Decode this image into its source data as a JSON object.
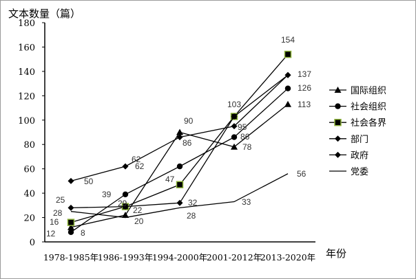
{
  "chart_data": {
    "type": "line",
    "ylabel": "文本数量（篇）",
    "xlabel": "年份",
    "ylim": [
      0,
      180
    ],
    "yticks": [
      0,
      20,
      40,
      60,
      80,
      100,
      120,
      140,
      160,
      180
    ],
    "categories": [
      "1978-1985年",
      "1986-1993年",
      "1994-2000年",
      "2001-2012年",
      "2013-2020年"
    ],
    "grid": false,
    "legend_position": "right",
    "series": [
      {
        "name": "国际组织",
        "marker": "triangle",
        "values": [
          12,
          22,
          90,
          78,
          113
        ]
      },
      {
        "name": "社会组织",
        "marker": "circle",
        "values": [
          8,
          39,
          62,
          86,
          126
        ]
      },
      {
        "name": "社会各界",
        "marker": "square",
        "marker_edge": "#8db33a",
        "values": [
          16,
          29,
          47,
          103,
          154
        ]
      },
      {
        "name": "部门",
        "marker": "diamond",
        "values": [
          50,
          62,
          86,
          95,
          137
        ]
      },
      {
        "name": "政府",
        "marker": "diamond",
        "values": [
          28,
          29,
          32,
          103,
          137
        ]
      },
      {
        "name": "党委",
        "marker": "none",
        "values": [
          25,
          20,
          28,
          33,
          56
        ]
      }
    ]
  }
}
